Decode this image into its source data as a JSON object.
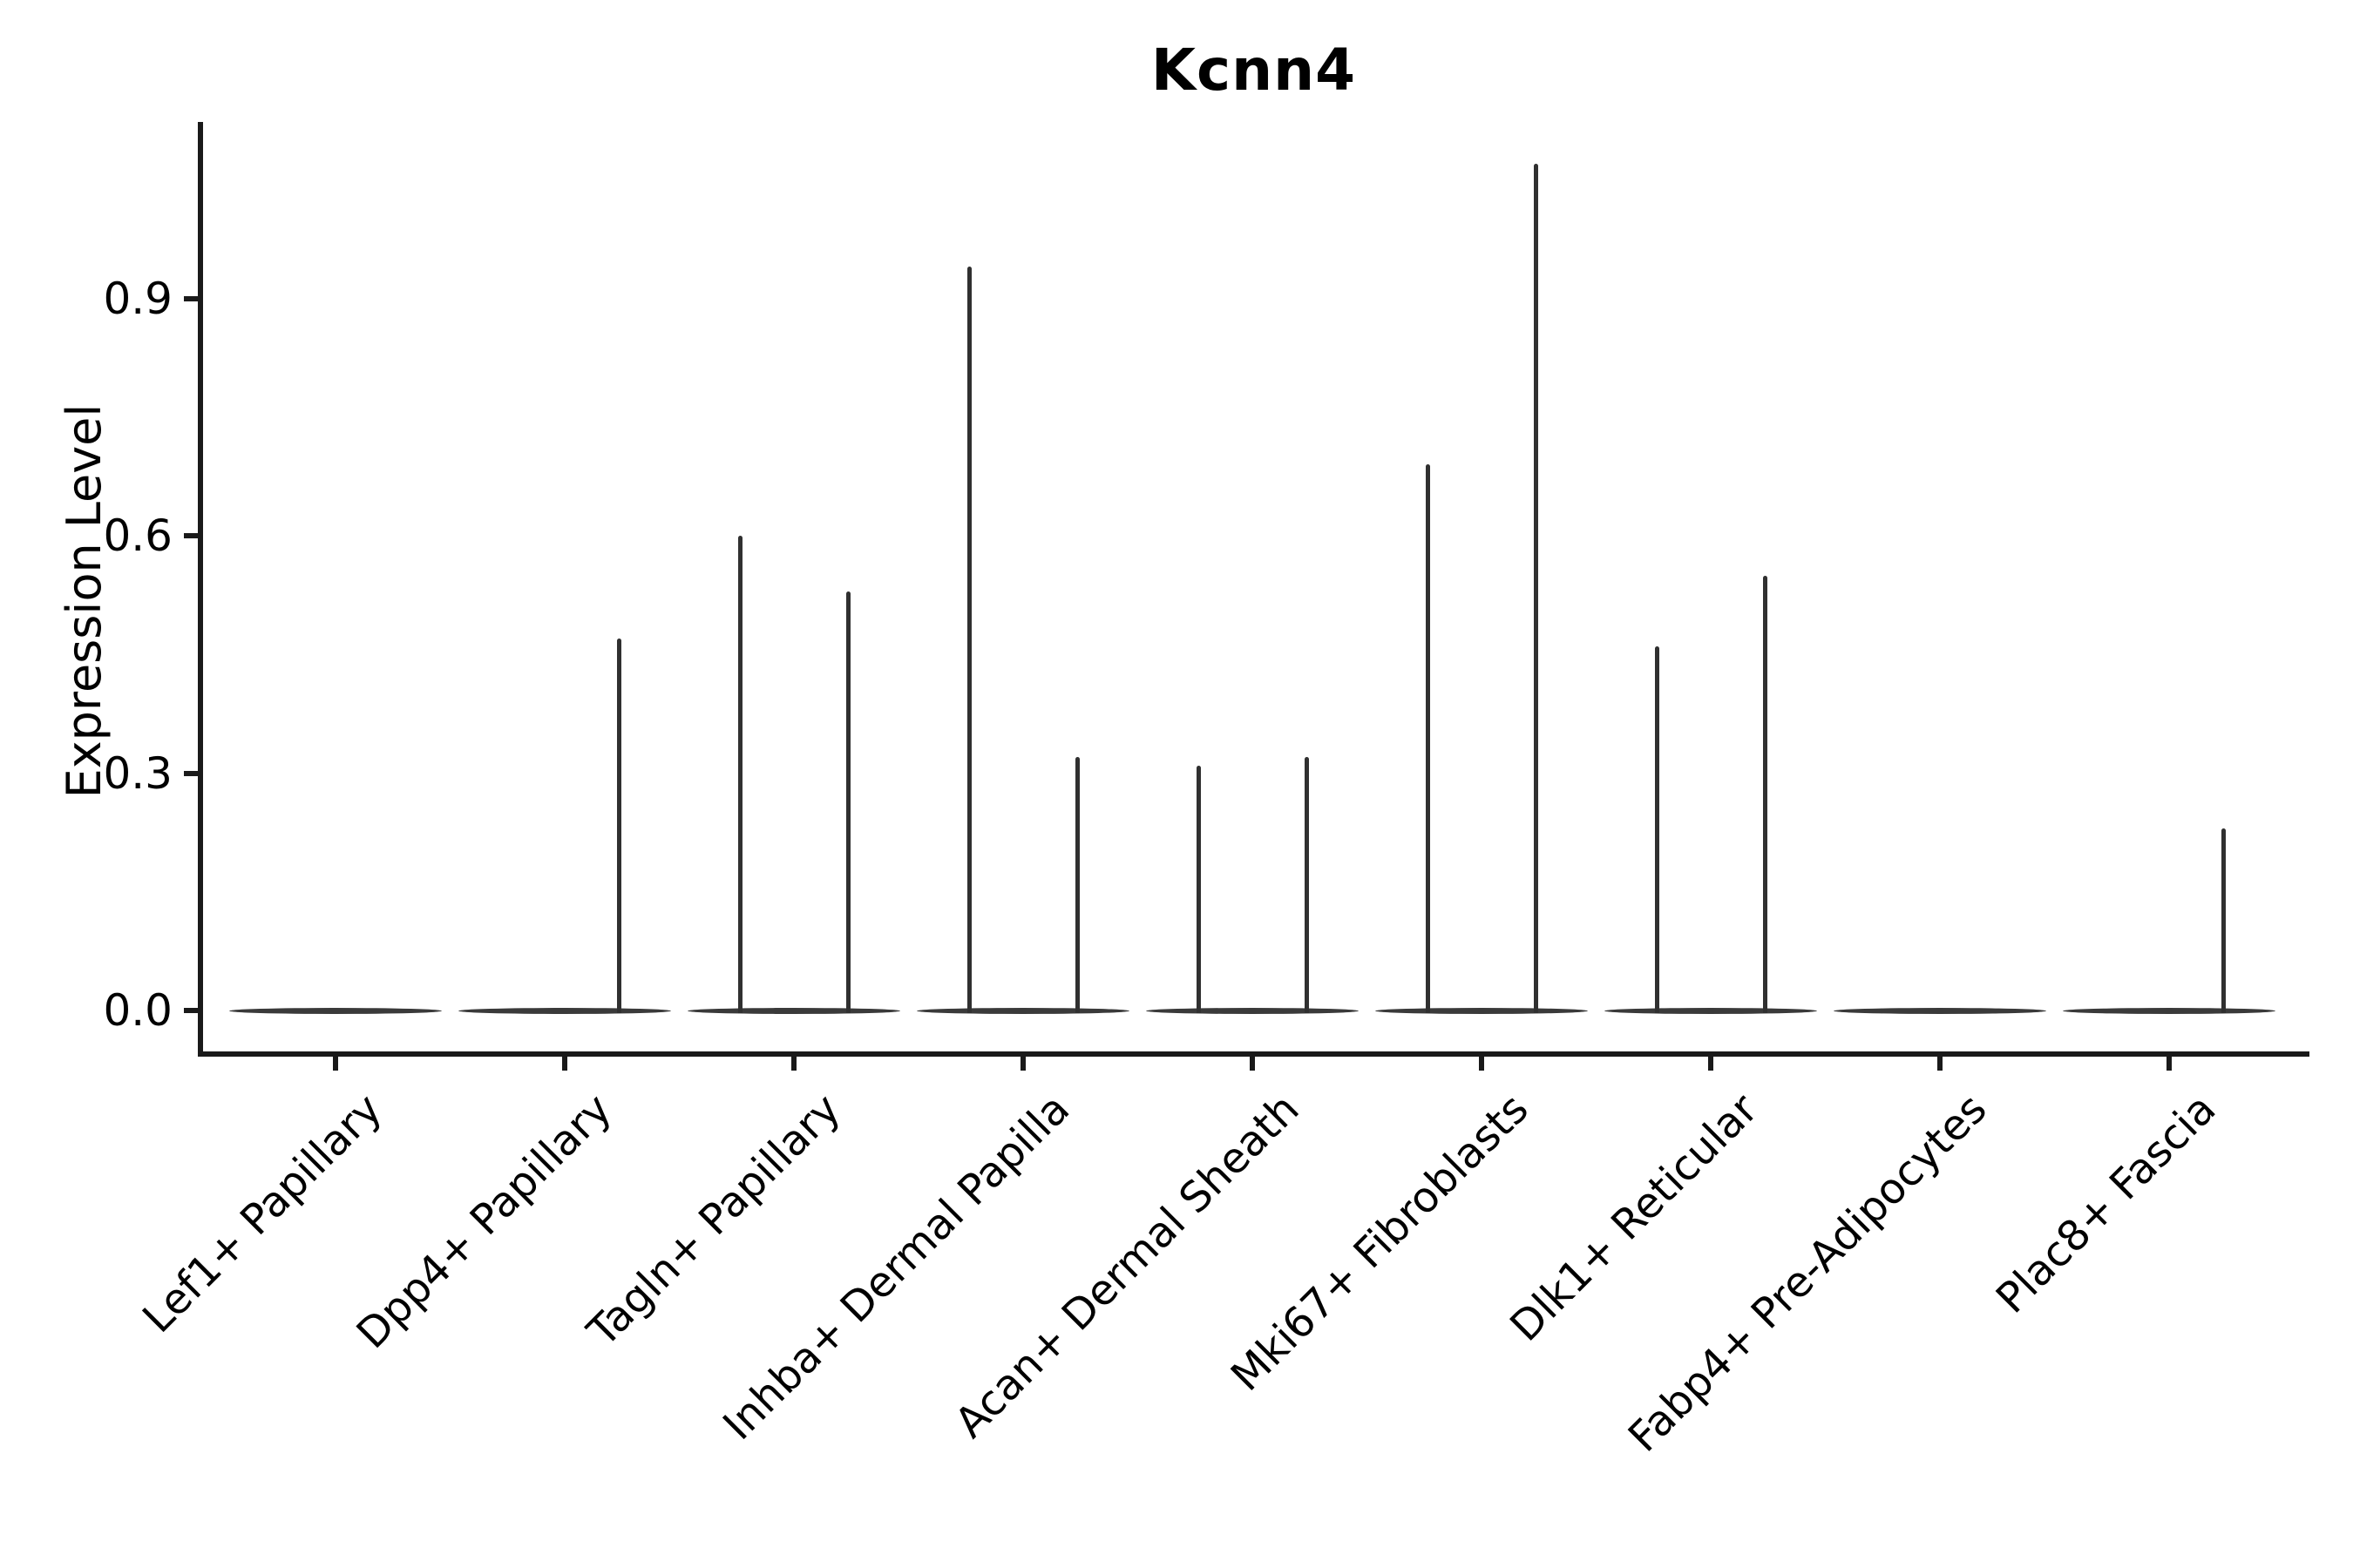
{
  "title": "Kcnn4",
  "y_axis": {
    "label": "Expression Level"
  },
  "colors": {
    "background": "#ffffff",
    "axis": "#1a1a1a",
    "violin_body": "#3a3a3a",
    "violin_spike": "#303030",
    "text": "#000000"
  },
  "chart_data": {
    "type": "violin",
    "title": "Kcnn4",
    "xlabel": "",
    "ylabel": "Expression Level",
    "ylim": [
      -0.05,
      1.12
    ],
    "grid": false,
    "legend": null,
    "yticks": [
      {
        "label": "0.0",
        "value": 0.0
      },
      {
        "label": "0.3",
        "value": 0.3
      },
      {
        "label": "0.6",
        "value": 0.6
      },
      {
        "label": "0.9",
        "value": 0.9
      }
    ],
    "categories": [
      "Lef1+ Papillary",
      "Dpp4+ Papillary",
      "Tagln+ Papillary",
      "Inhba+ Dermal Papilla",
      "Acan+ Dermal Sheath",
      "Mki67+ Fibroblasts",
      "Dlk1+ Reticular",
      "Fabp4+ Pre-Adipocytes",
      "Plac8+ Fascia"
    ],
    "baseline_value": 0.0,
    "series": [
      {
        "name": "left-subviolin-max",
        "values": [
          null,
          null,
          0.6,
          0.94,
          0.31,
          0.69,
          0.46,
          null,
          null
        ]
      },
      {
        "name": "right-subviolin-max",
        "values": [
          null,
          0.47,
          0.53,
          0.32,
          0.32,
          1.07,
          0.55,
          null,
          0.23
        ]
      }
    ]
  }
}
